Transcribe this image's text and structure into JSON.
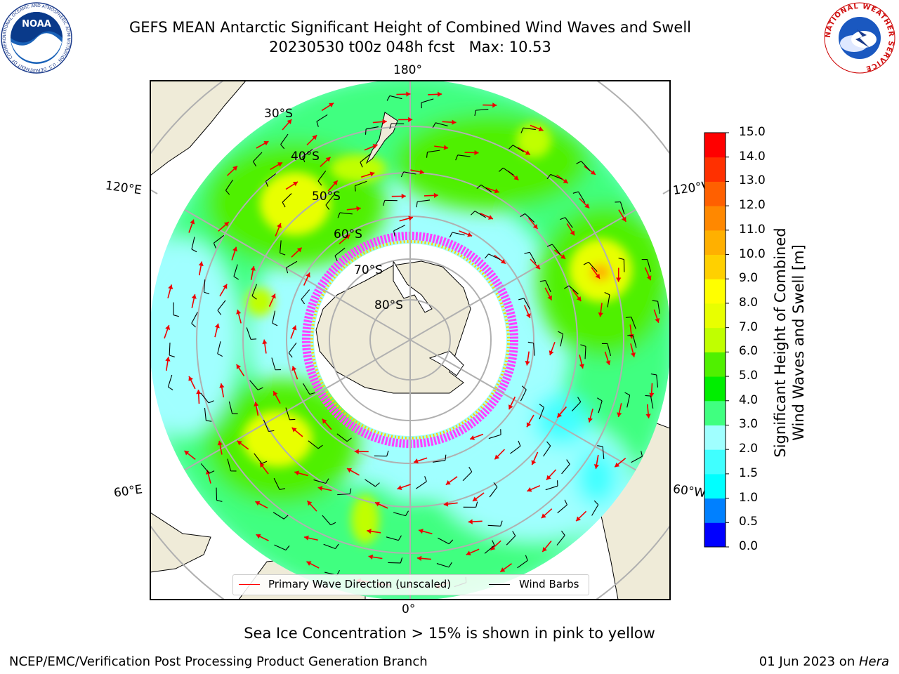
{
  "header": {
    "title_line1": "GEFS MEAN Antarctic Significant Height of Combined Wind Waves and Swell",
    "title_line2": "20230530 t00z 048h fcst   Max: 10.53"
  },
  "logos": {
    "left": {
      "name": "noaa-logo",
      "text": "NOAA",
      "ring_text": "NATIONAL OCEANIC AND ATMOSPHERIC ADMINISTRATION · U.S. DEPARTMENT OF COMMERCE"
    },
    "right": {
      "name": "nws-logo",
      "ring_text": "NATIONAL WEATHER SERVICE"
    }
  },
  "map": {
    "projection": "south-polar-stereographic",
    "longitude_labels": {
      "top": "180°",
      "bottom": "0°",
      "left_upper": "120°E",
      "left_lower": "60°E",
      "right_upper": "120°W",
      "right_lower": "60°W"
    },
    "latitude_labels": [
      "30°S",
      "40°S",
      "50°S",
      "60°S",
      "70°S",
      "80°S"
    ],
    "legend": [
      {
        "label": "Primary Wave Direction (unscaled)",
        "color": "#ff0000"
      },
      {
        "label": "Wind Barbs",
        "color": "#000000"
      }
    ],
    "max_value_location": "south Pacific near 120°W"
  },
  "colorbar": {
    "label_line1": "Significant Height of Combined",
    "label_line2": "Wind Waves and Swell [m]",
    "ticks": [
      "0.0",
      "0.5",
      "1.0",
      "1.5",
      "2.0",
      "3.0",
      "4.0",
      "5.0",
      "6.0",
      "7.0",
      "8.0",
      "9.0",
      "10.0",
      "11.0",
      "12.0",
      "13.0",
      "14.0",
      "15.0"
    ],
    "colors": [
      "#0000ff",
      "#0080ff",
      "#00ffff",
      "#40ffff",
      "#a0ffff",
      "#40ff80",
      "#00ee00",
      "#50f000",
      "#c0ff00",
      "#e8ff00",
      "#ffff00",
      "#ffd000",
      "#ffb000",
      "#ff8800",
      "#ff6000",
      "#ff3000",
      "#ff0000"
    ]
  },
  "note": "Sea Ice Concentration > 15% is shown in pink to yellow",
  "footer": {
    "left": "NCEP/EMC/Verification Post Processing Product Generation Branch",
    "right_prefix": "01 Jun 2023 on ",
    "right_italic": "Hera"
  }
}
